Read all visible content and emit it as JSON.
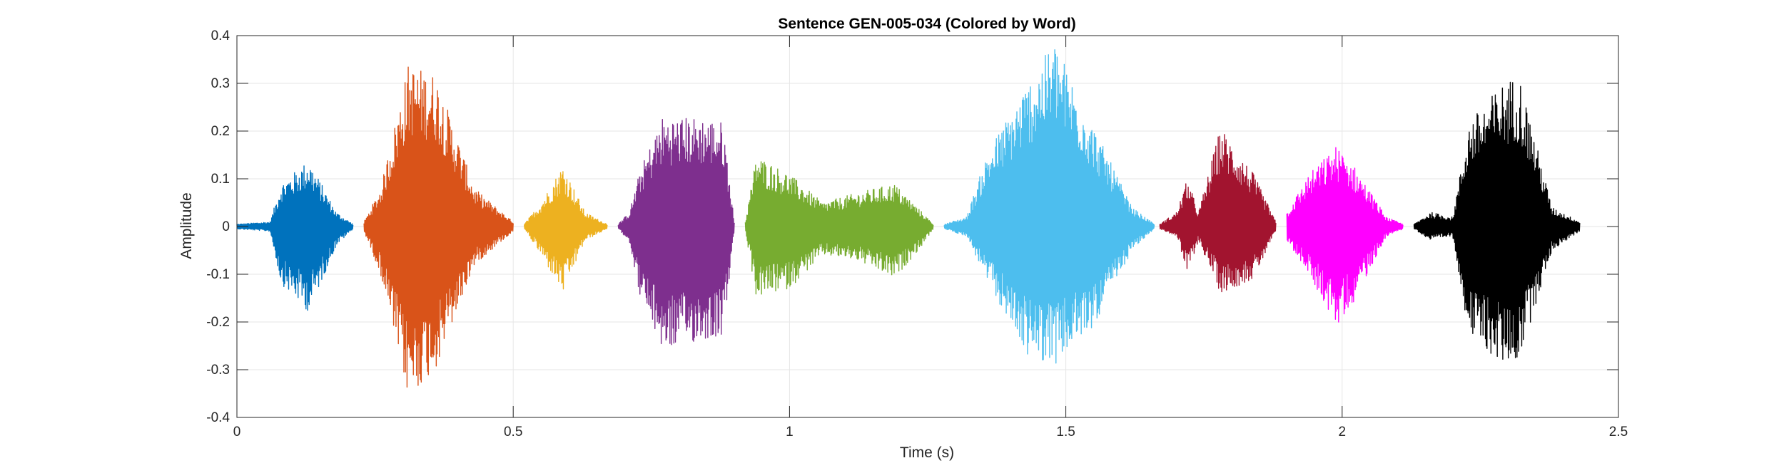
{
  "chart_data": {
    "type": "line",
    "title": "Sentence GEN-005-034 (Colored by Word)",
    "xlabel": "Time (s)",
    "ylabel": "Amplitude",
    "xlim": [
      0,
      2.5
    ],
    "ylim": [
      -0.4,
      0.4
    ],
    "x_ticks": [
      0,
      0.5,
      1,
      1.5,
      2,
      2.5
    ],
    "x_tick_labels": [
      "0",
      "0.5",
      "1",
      "1.5",
      "2",
      "2.5"
    ],
    "y_ticks": [
      0.4,
      0.3,
      0.2,
      0.1,
      0,
      -0.1,
      -0.2,
      -0.3,
      -0.4
    ],
    "y_tick_labels": [
      "0.4",
      "0.3",
      "0.2",
      "0.1",
      "0",
      "-0.1",
      "-0.2",
      "-0.3",
      "-0.4"
    ],
    "grid": true,
    "series": [
      {
        "color": "#0072BD",
        "t_start": 0.0,
        "t_end": 0.21,
        "envelope": {
          "t": [
            0.0,
            0.06,
            0.08,
            0.13,
            0.18,
            0.21
          ],
          "top": [
            0.005,
            0.01,
            0.09,
            0.14,
            0.03,
            0.005
          ],
          "bottom": [
            -0.005,
            -0.01,
            -0.12,
            -0.18,
            -0.04,
            -0.005
          ]
        }
      },
      {
        "color": "#D95319",
        "t_start": 0.23,
        "t_end": 0.5,
        "envelope": {
          "t": [
            0.23,
            0.26,
            0.31,
            0.36,
            0.43,
            0.5
          ],
          "top": [
            0.01,
            0.08,
            0.34,
            0.32,
            0.08,
            0.01
          ],
          "bottom": [
            -0.01,
            -0.1,
            -0.36,
            -0.3,
            -0.08,
            -0.01
          ]
        }
      },
      {
        "color": "#EDB120",
        "t_start": 0.52,
        "t_end": 0.67,
        "envelope": {
          "t": [
            0.52,
            0.55,
            0.59,
            0.63,
            0.67
          ],
          "top": [
            0.005,
            0.05,
            0.13,
            0.03,
            0.005
          ],
          "bottom": [
            -0.005,
            -0.06,
            -0.14,
            -0.03,
            -0.005
          ]
        }
      },
      {
        "color": "#7E2F8E",
        "t_start": 0.69,
        "t_end": 0.9,
        "envelope": {
          "t": [
            0.69,
            0.71,
            0.73,
            0.77,
            0.84,
            0.88,
            0.9
          ],
          "top": [
            0.005,
            0.03,
            0.12,
            0.23,
            0.23,
            0.22,
            0.01
          ],
          "bottom": [
            -0.005,
            -0.03,
            -0.15,
            -0.26,
            -0.24,
            -0.23,
            -0.01
          ]
        }
      },
      {
        "color": "#77AC30",
        "t_start": 0.92,
        "t_end": 1.26,
        "envelope": {
          "t": [
            0.92,
            0.94,
            1.0,
            1.06,
            1.12,
            1.19,
            1.24,
            1.26
          ],
          "top": [
            0.01,
            0.15,
            0.11,
            0.05,
            0.07,
            0.09,
            0.03,
            0.005
          ],
          "bottom": [
            -0.01,
            -0.15,
            -0.13,
            -0.06,
            -0.07,
            -0.11,
            -0.04,
            -0.005
          ]
        }
      },
      {
        "color": "#4DBEEE",
        "t_start": 1.28,
        "t_end": 1.66,
        "envelope": {
          "t": [
            1.28,
            1.32,
            1.36,
            1.43,
            1.48,
            1.55,
            1.62,
            1.66
          ],
          "top": [
            0.005,
            0.02,
            0.16,
            0.3,
            0.39,
            0.21,
            0.04,
            0.005
          ],
          "bottom": [
            -0.005,
            -0.02,
            -0.12,
            -0.27,
            -0.29,
            -0.21,
            -0.05,
            -0.005
          ]
        }
      },
      {
        "color": "#A2142F",
        "t_start": 1.67,
        "t_end": 1.88,
        "envelope": {
          "t": [
            1.67,
            1.7,
            1.72,
            1.74,
            1.78,
            1.84,
            1.88
          ],
          "top": [
            0.005,
            0.03,
            0.1,
            0.03,
            0.21,
            0.11,
            0.01
          ],
          "bottom": [
            -0.005,
            -0.02,
            -0.1,
            -0.03,
            -0.14,
            -0.11,
            -0.01
          ]
        }
      },
      {
        "color": "#FF00FF",
        "t_start": 1.9,
        "t_end": 2.11,
        "envelope": {
          "t": [
            1.9,
            1.94,
            1.99,
            2.02,
            2.08,
            2.11
          ],
          "top": [
            0.03,
            0.11,
            0.17,
            0.13,
            0.02,
            0.005
          ],
          "bottom": [
            -0.03,
            -0.1,
            -0.21,
            -0.16,
            -0.02,
            -0.005
          ]
        }
      },
      {
        "color": "#000000",
        "t_start": 2.13,
        "t_end": 2.43,
        "envelope": {
          "t": [
            2.13,
            2.16,
            2.2,
            2.23,
            2.29,
            2.32,
            2.38,
            2.43
          ],
          "top": [
            0.005,
            0.03,
            0.02,
            0.22,
            0.3,
            0.32,
            0.04,
            0.01
          ],
          "bottom": [
            -0.005,
            -0.03,
            -0.02,
            -0.23,
            -0.29,
            -0.28,
            -0.05,
            -0.01
          ]
        }
      }
    ]
  }
}
